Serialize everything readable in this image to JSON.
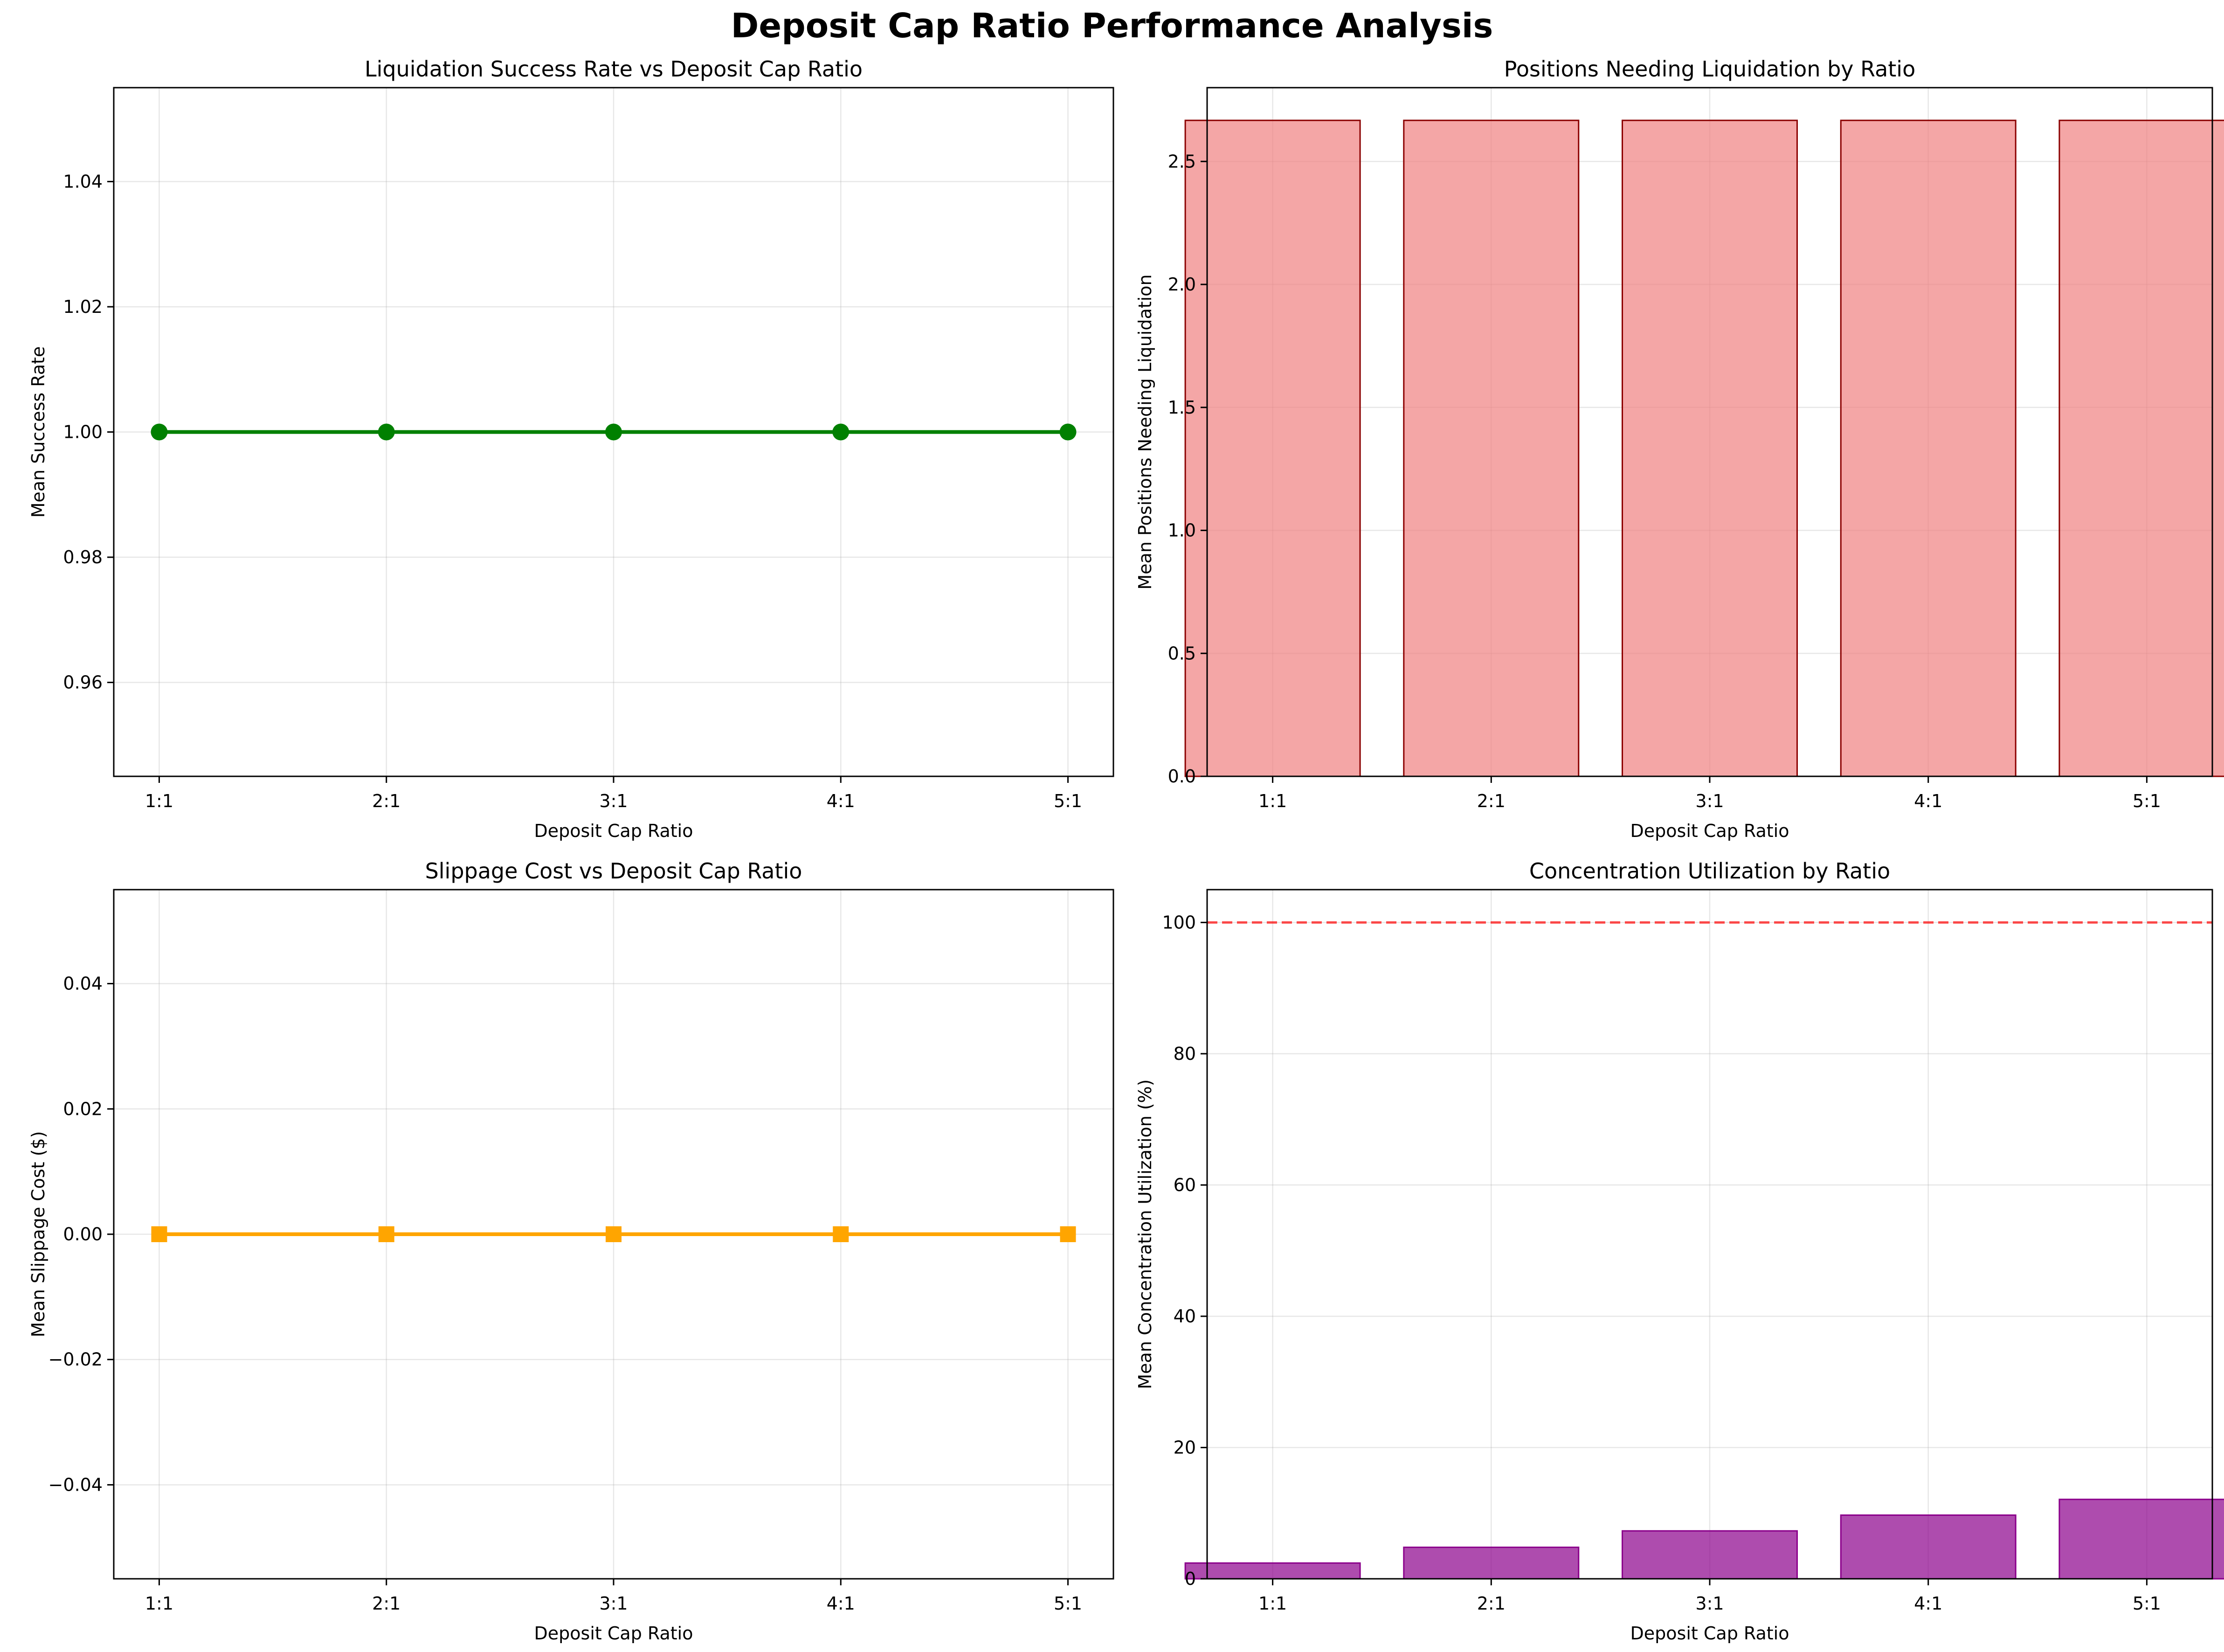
{
  "figure": {
    "title": "Deposit Cap Ratio Performance Analysis"
  },
  "chart_data": [
    {
      "type": "line",
      "title": "Liquidation Success Rate vs Deposit Cap Ratio",
      "xlabel": "Deposit Cap Ratio",
      "ylabel": "Mean Success Rate",
      "categories": [
        "1:1",
        "2:1",
        "3:1",
        "4:1",
        "5:1"
      ],
      "values": [
        1.0,
        1.0,
        1.0,
        1.0,
        1.0
      ],
      "ylim": [
        0.945,
        1.055
      ],
      "yticks": [
        0.96,
        0.98,
        1.0,
        1.02,
        1.04
      ],
      "ytick_labels": [
        "0.96",
        "0.98",
        "1.00",
        "1.02",
        "1.04"
      ],
      "marker": "circle",
      "color": "#008000",
      "grid": true
    },
    {
      "type": "bar",
      "title": "Positions Needing Liquidation by Ratio",
      "xlabel": "Deposit Cap Ratio",
      "ylabel": "Mean Positions Needing Liquidation",
      "categories": [
        "1:1",
        "2:1",
        "3:1",
        "4:1",
        "5:1"
      ],
      "values": [
        2.667,
        2.667,
        2.667,
        2.667,
        2.667
      ],
      "ylim": [
        0,
        2.8
      ],
      "yticks": [
        0,
        0.5,
        1.0,
        1.5,
        2.0,
        2.5
      ],
      "ytick_labels": [
        "0.0",
        "0.5",
        "1.0",
        "1.5",
        "2.0",
        "2.5"
      ],
      "color": "#f08080",
      "edge_color": "#8b0000",
      "grid": true
    },
    {
      "type": "line",
      "title": "Slippage Cost vs Deposit Cap Ratio",
      "xlabel": "Deposit Cap Ratio",
      "ylabel": "Mean Slippage Cost ($)",
      "categories": [
        "1:1",
        "2:1",
        "3:1",
        "4:1",
        "5:1"
      ],
      "values": [
        0,
        0,
        0,
        0,
        0
      ],
      "ylim": [
        -0.055,
        0.055
      ],
      "yticks": [
        -0.04,
        -0.02,
        0.0,
        0.02,
        0.04
      ],
      "ytick_labels": [
        "−0.04",
        "−0.02",
        "0.00",
        "0.02",
        "0.04"
      ],
      "marker": "square",
      "color": "#ffa500",
      "grid": true
    },
    {
      "type": "bar",
      "title": "Concentration Utilization by Ratio",
      "xlabel": "Deposit Cap Ratio",
      "ylabel": "Mean Concentration Utilization (%)",
      "categories": [
        "1:1",
        "2:1",
        "3:1",
        "4:1",
        "5:1"
      ],
      "values": [
        2.4,
        4.8,
        7.3,
        9.7,
        12.1
      ],
      "ylim": [
        0,
        105
      ],
      "yticks": [
        0,
        20,
        40,
        60,
        80,
        100
      ],
      "ytick_labels": [
        "0",
        "20",
        "40",
        "60",
        "80",
        "100"
      ],
      "color": "#8b008b",
      "edge_color": "#8b008b",
      "reference_line": 100,
      "reference_color": "#ff0000",
      "grid": true
    }
  ]
}
